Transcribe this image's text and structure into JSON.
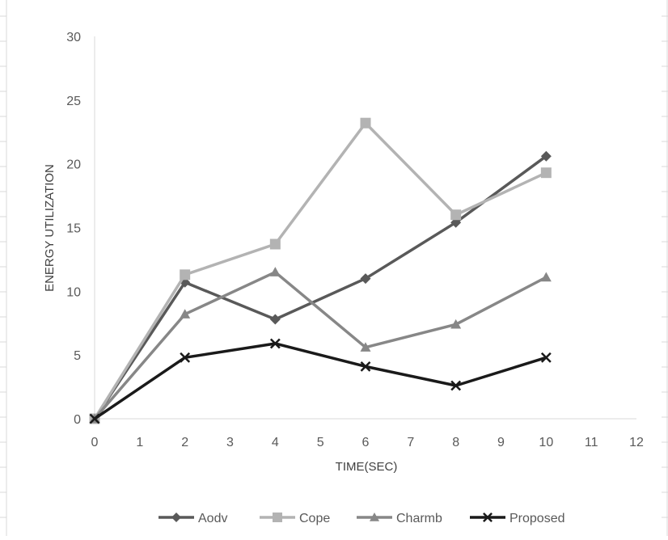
{
  "chart_data": {
    "type": "line",
    "title": "",
    "xlabel": "TIME(SEC)",
    "ylabel": "ENERGY UTILIZATION",
    "xlim": [
      0,
      12
    ],
    "ylim": [
      0,
      30
    ],
    "x_ticks": [
      0,
      1,
      2,
      3,
      4,
      5,
      6,
      7,
      8,
      9,
      10,
      11,
      12
    ],
    "y_ticks": [
      0,
      5,
      10,
      15,
      20,
      25,
      30
    ],
    "x": [
      0,
      2,
      4,
      6,
      8,
      10
    ],
    "grid": false,
    "legend_position": "bottom",
    "series": [
      {
        "name": "Aodv",
        "marker": "diamond",
        "color": "#595959",
        "values": [
          0,
          10.7,
          7.8,
          11.0,
          15.4,
          20.6
        ]
      },
      {
        "name": "Cope",
        "marker": "square",
        "color": "#b3b3b3",
        "values": [
          0,
          11.3,
          13.7,
          23.2,
          16.0,
          19.3
        ]
      },
      {
        "name": "Charmb",
        "marker": "triangle",
        "color": "#878787",
        "values": [
          0,
          8.2,
          11.5,
          5.6,
          7.4,
          11.1
        ]
      },
      {
        "name": "Proposed",
        "marker": "x",
        "color": "#1a1a1a",
        "values": [
          0,
          4.8,
          5.9,
          4.1,
          2.6,
          4.8
        ]
      }
    ]
  }
}
